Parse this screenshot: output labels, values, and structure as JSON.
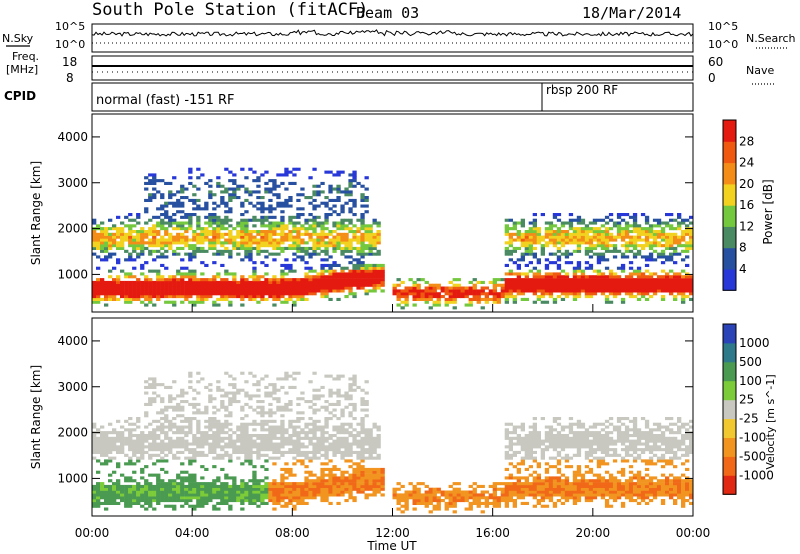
{
  "header": {
    "station": "South Pole Station (fitACF)",
    "beam": "Beam 03",
    "date": "18/Mar/2014"
  },
  "sky_panel": {
    "left_label": "N.Sky",
    "right_label": "N.Search",
    "left_ticks": [
      "10^5",
      "10^0"
    ],
    "right_ticks": [
      "10^5",
      "10^0"
    ]
  },
  "freq_panel": {
    "left_label_line1": "Freq.",
    "left_label_line2": "[MHz]",
    "right_label": "Nave",
    "left_ticks": [
      "18",
      "8"
    ],
    "right_ticks": [
      "60",
      "0"
    ]
  },
  "cpid_panel": {
    "label": "CPID",
    "segments": [
      {
        "text": "normal (fast) -151 RF",
        "start_hour": 0
      },
      {
        "text": "rbsp 200 RF",
        "start_hour": 18.0
      }
    ]
  },
  "x_axis": {
    "label": "Time UT",
    "ticks": [
      "00:00",
      "04:00",
      "08:00",
      "12:00",
      "16:00",
      "20:00",
      "00:00"
    ]
  },
  "chart_data": [
    {
      "type": "heatmap",
      "quantity": "Power",
      "colorbar_label": "Power [dB]",
      "ylabel": "Slant Range [km]",
      "ylim": [
        180,
        4500
      ],
      "xlim_hours": [
        0,
        24
      ],
      "y_ticks": [
        "1000",
        "2000",
        "3000",
        "4000"
      ],
      "colorbar_ticks": [
        "4",
        "8",
        "12",
        "16",
        "20",
        "24",
        "28"
      ],
      "colors": [
        "#2838d8",
        "#2850a0",
        "#4a8a62",
        "#74c83e",
        "#f2d21e",
        "#f48c18",
        "#f05a10",
        "#e41a10"
      ]
    },
    {
      "type": "heatmap",
      "quantity": "Velocity",
      "colorbar_label": "Velocity [m s^-1]",
      "ylabel": "Slant Range [km]",
      "ylim": [
        180,
        4500
      ],
      "xlim_hours": [
        0,
        24
      ],
      "y_ticks": [
        "1000",
        "2000",
        "3000",
        "4000"
      ],
      "colorbar_ticks": [
        "1000",
        "500",
        "100",
        "25",
        "-25",
        "-100",
        "-500",
        "-1000"
      ],
      "colors": [
        "#2a44b8",
        "#2e7a8a",
        "#4a9a52",
        "#7ccc3a",
        "#c8c8c0",
        "#f2c830",
        "#f29420",
        "#f06818",
        "#e02812"
      ]
    }
  ]
}
